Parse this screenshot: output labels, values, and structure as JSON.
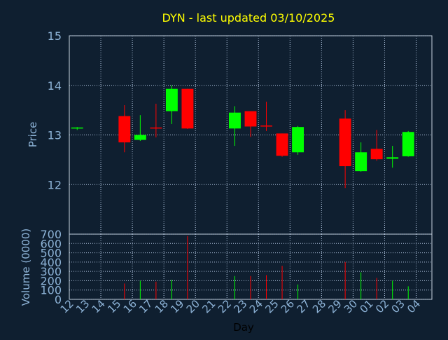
{
  "chart_data": {
    "type": "candlestick",
    "title": "DYN - last updated 03/10/2025",
    "xlabel": "Day",
    "ylabel_price": "Price",
    "ylabel_volume": "Volume (0000)",
    "price_ylim": [
      11.0,
      15.0
    ],
    "price_yticks": [
      "12",
      "13",
      "14",
      "15"
    ],
    "volume_ylim": [
      0,
      700
    ],
    "volume_yticks": [
      "0",
      "100",
      "200",
      "300",
      "400",
      "500",
      "600",
      "700"
    ],
    "x_ticks": [
      "12",
      "13",
      "14",
      "15",
      "16",
      "17",
      "18",
      "19",
      "20",
      "21",
      "22",
      "23",
      "24",
      "25",
      "26",
      "27",
      "28",
      "29",
      "30",
      "01",
      "02",
      "03",
      "04"
    ],
    "grid": true,
    "colors": {
      "up": "#00ff00",
      "down": "#ff0000",
      "title": "#ffff00",
      "axis_text": "#8eb4d8",
      "grid": "#b0c4de"
    },
    "candles": [
      {
        "x": "12",
        "open": 13.13,
        "high": 13.16,
        "low": 13.1,
        "close": 13.15,
        "volume": 0
      },
      {
        "x": "15",
        "open": 13.38,
        "high": 13.6,
        "low": 12.65,
        "close": 12.85,
        "volume": 170
      },
      {
        "x": "16",
        "open": 12.9,
        "high": 13.4,
        "low": 12.88,
        "close": 13.0,
        "volume": 200
      },
      {
        "x": "17",
        "open": 13.15,
        "high": 13.63,
        "low": 12.95,
        "close": 13.13,
        "volume": 190
      },
      {
        "x": "18",
        "open": 13.48,
        "high": 14.0,
        "low": 13.22,
        "close": 13.93,
        "volume": 210
      },
      {
        "x": "19",
        "open": 13.93,
        "high": 13.93,
        "low": 13.12,
        "close": 13.13,
        "volume": 680
      },
      {
        "x": "22",
        "open": 13.13,
        "high": 13.58,
        "low": 12.78,
        "close": 13.45,
        "volume": 250
      },
      {
        "x": "23",
        "open": 13.48,
        "high": 13.48,
        "low": 12.96,
        "close": 13.17,
        "volume": 250
      },
      {
        "x": "24",
        "open": 13.19,
        "high": 13.67,
        "low": 13.08,
        "close": 13.17,
        "volume": 260
      },
      {
        "x": "25",
        "open": 13.03,
        "high": 13.03,
        "low": 12.56,
        "close": 12.58,
        "volume": 360
      },
      {
        "x": "26",
        "open": 12.65,
        "high": 13.18,
        "low": 12.6,
        "close": 13.16,
        "volume": 160
      },
      {
        "x": "29",
        "open": 13.33,
        "high": 13.5,
        "low": 11.93,
        "close": 12.37,
        "volume": 400
      },
      {
        "x": "30",
        "open": 12.27,
        "high": 12.85,
        "low": 12.26,
        "close": 12.65,
        "volume": 290
      },
      {
        "x": "01",
        "open": 12.72,
        "high": 13.1,
        "low": 12.48,
        "close": 12.51,
        "volume": 230
      },
      {
        "x": "02",
        "open": 12.52,
        "high": 12.78,
        "low": 12.34,
        "close": 12.55,
        "volume": 200
      },
      {
        "x": "03",
        "open": 12.57,
        "high": 13.08,
        "low": 12.56,
        "close": 13.06,
        "volume": 140
      }
    ]
  }
}
